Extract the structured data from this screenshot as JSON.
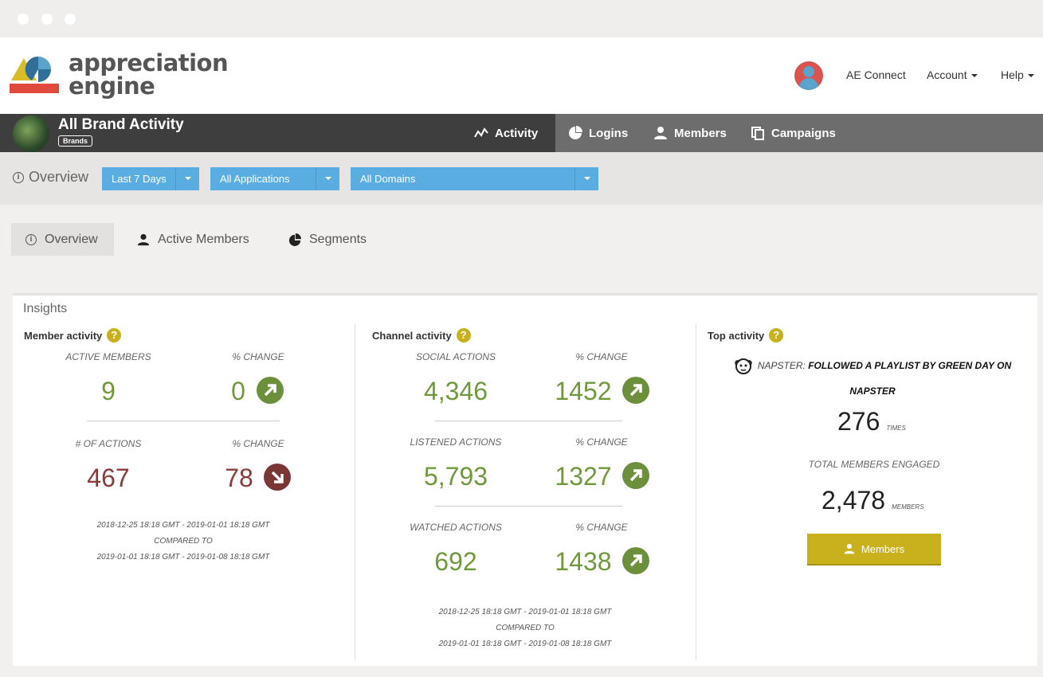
{
  "app": {
    "logo_line1": "appreciation",
    "logo_line2": "engine"
  },
  "topnav": {
    "connect": "AE Connect",
    "account": "Account",
    "help": "Help"
  },
  "brand": {
    "title": "All Brand Activity",
    "badge": "Brands"
  },
  "maintabs": [
    {
      "label": "Activity",
      "icon": "activity-icon",
      "active": true
    },
    {
      "label": "Logins",
      "icon": "pie-chart-icon"
    },
    {
      "label": "Members",
      "icon": "user-icon"
    },
    {
      "label": "Campaigns",
      "icon": "copy-icon"
    }
  ],
  "filters": {
    "label": "Overview",
    "range": "Last 7 Days",
    "applications": "All Applications",
    "domains": "All Domains"
  },
  "subtabs": [
    {
      "label": "Overview",
      "active": true
    },
    {
      "label": "Active Members"
    },
    {
      "label": "Segments"
    }
  ],
  "insights": {
    "title": "Insights",
    "member_activity": {
      "title": "Member activity",
      "active_members_label": "ACTIVE MEMBERS",
      "active_members": "9",
      "change_label": "% CHANGE",
      "active_change": "0",
      "actions_label": "# OF ACTIONS",
      "actions": "467",
      "actions_change": "78",
      "date1": "2018-12-25 18:18 GMT - 2019-01-01 18:18 GMT",
      "compared": "COMPARED TO",
      "date2": "2019-01-01 18:18 GMT - 2019-01-08 18:18 GMT"
    },
    "channel_activity": {
      "title": "Channel activity",
      "rows": [
        {
          "label": "SOCIAL ACTIONS",
          "value": "4,346",
          "change_label": "% CHANGE",
          "change": "1452"
        },
        {
          "label": "LISTENED ACTIONS",
          "value": "5,793",
          "change_label": "% CHANGE",
          "change": "1327"
        },
        {
          "label": "WATCHED ACTIONS",
          "value": "692",
          "change_label": "% CHANGE",
          "change": "1438"
        }
      ],
      "date1": "2018-12-25 18:18 GMT - 2019-01-01 18:18 GMT",
      "compared": "COMPARED TO",
      "date2": "2019-01-01 18:18 GMT - 2019-01-08 18:18 GMT"
    },
    "top_activity": {
      "title": "Top activity",
      "source": "NAPSTER:",
      "activity": "FOLLOWED A PLAYLIST BY GREEN DAY ON",
      "activity_line2": "NAPSTER",
      "times": "276",
      "times_label": "TIMES",
      "engaged_label": "TOTAL MEMBERS ENGAGED",
      "members": "2,478",
      "members_label": "MEMBERS",
      "button": "Members"
    }
  },
  "colors": {
    "green": "#6f9a3b",
    "red": "#8a3a3a",
    "gold": "#c9b11e",
    "blue": "#5aade0"
  }
}
